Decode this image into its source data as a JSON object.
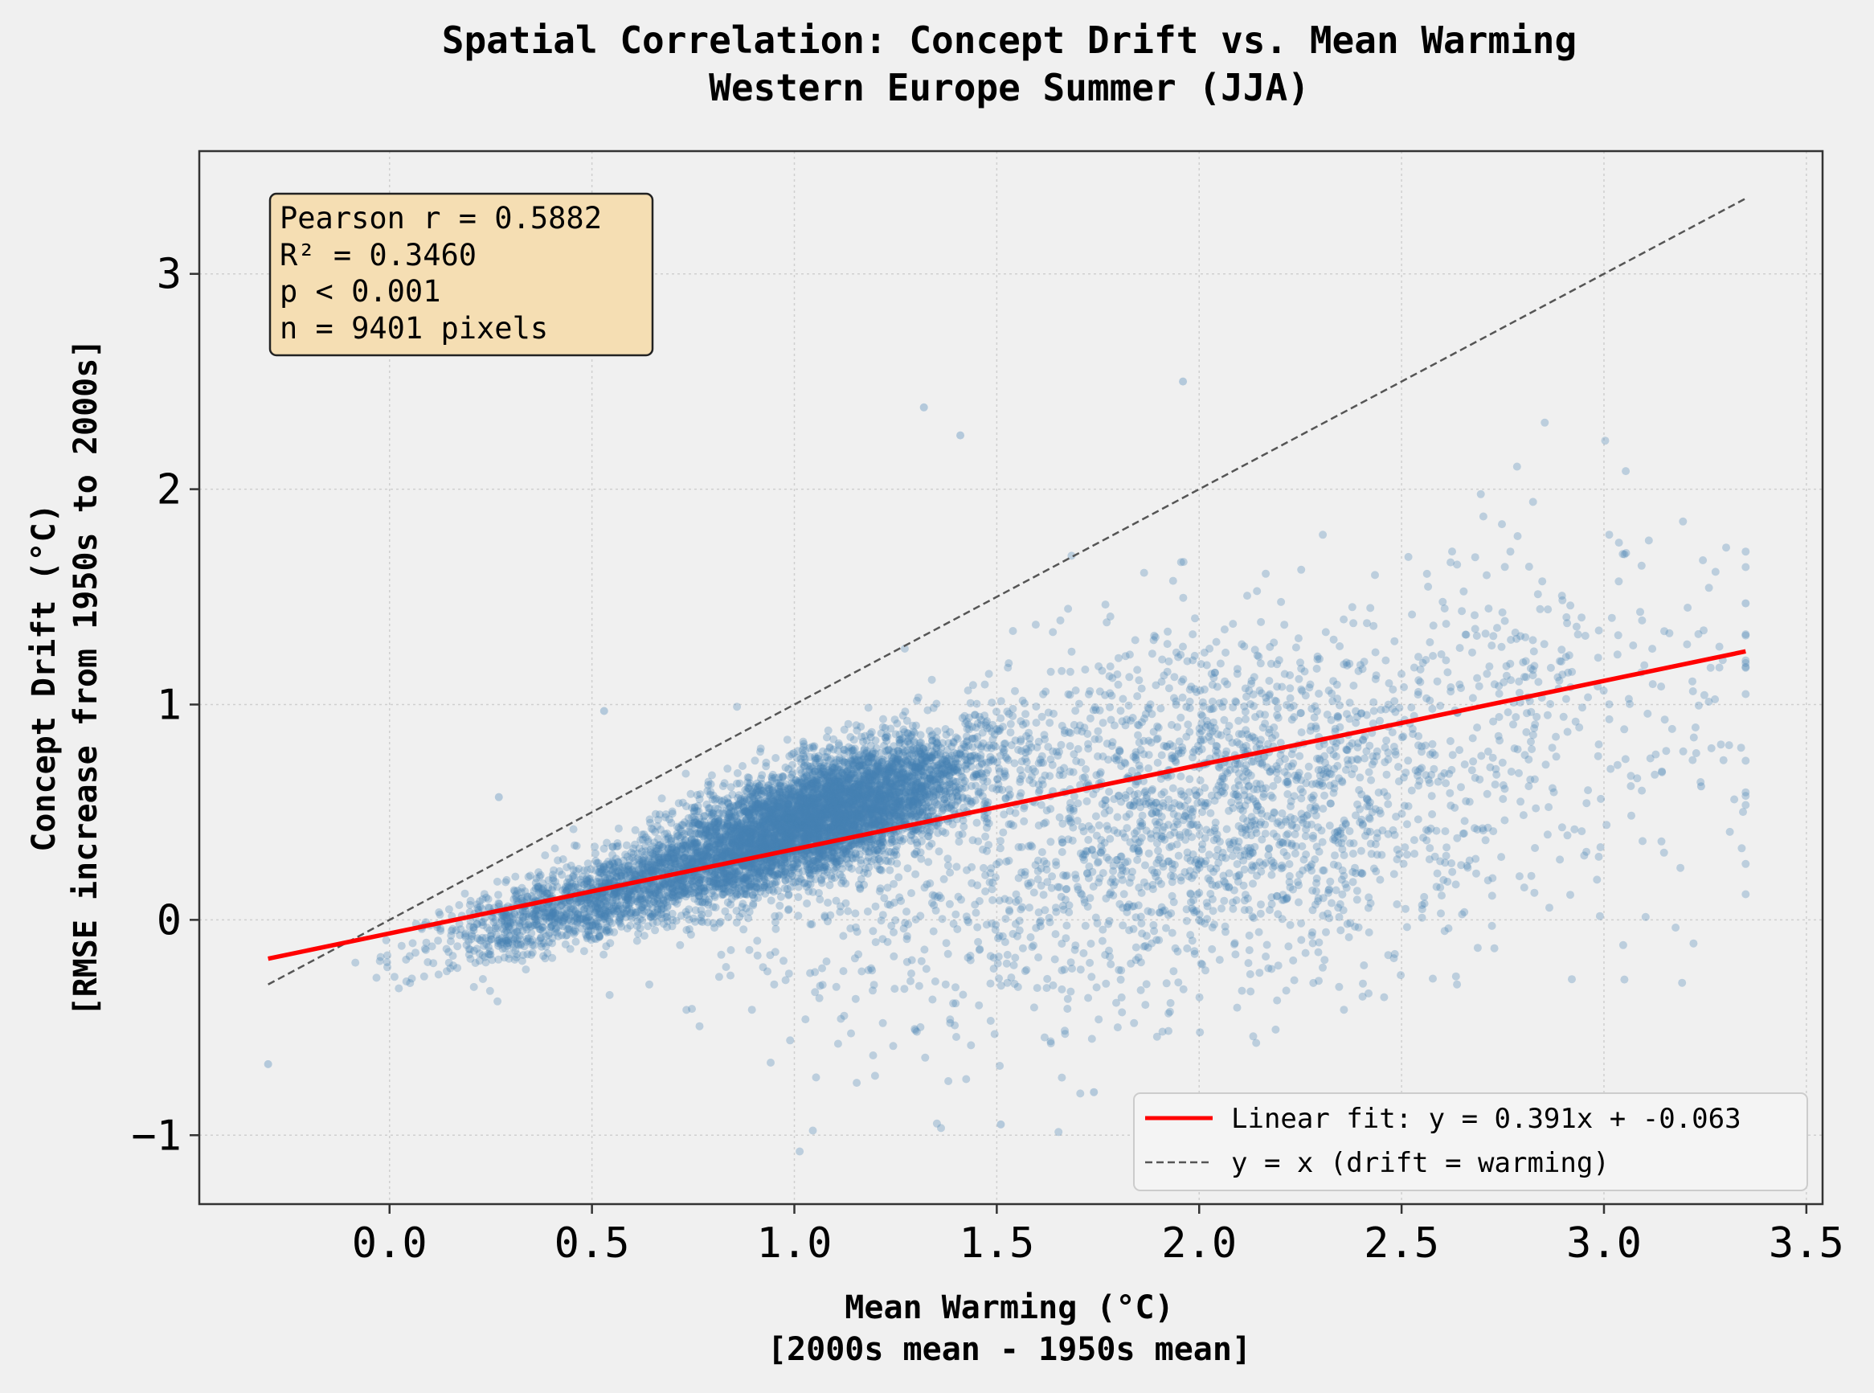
{
  "chart_data": {
    "type": "scatter",
    "title": "Spatial Correlation: Concept Drift vs. Mean Warming",
    "subtitle": "Western Europe Summer (JJA)",
    "xlabel": "Mean Warming (°C)",
    "xlabel2": "[2000s mean - 1950s mean]",
    "ylabel": "Concept Drift (°C)",
    "ylabel2": "[RMSE increase from 1950s to 2000s]",
    "xlim": [
      -0.47,
      3.54
    ],
    "ylim": [
      -1.32,
      3.57
    ],
    "xticks": [
      0.0,
      0.5,
      1.0,
      1.5,
      2.0,
      2.5,
      3.0,
      3.5
    ],
    "xtick_labels": [
      "0.0",
      "0.5",
      "1.0",
      "1.5",
      "2.0",
      "2.5",
      "3.0",
      "3.5"
    ],
    "yticks": [
      -1,
      0,
      1,
      2,
      3
    ],
    "ytick_labels": [
      "−1",
      "0",
      "1",
      "2",
      "3"
    ],
    "grid": true,
    "point_color": "#4682b4",
    "fit_color": "#ff0000",
    "identity_color": "#555555",
    "n_points": 9401,
    "fit": {
      "slope": 0.391,
      "intercept": -0.063,
      "x_range": [
        -0.3,
        3.35
      ]
    },
    "identity_line": {
      "x_range": [
        -0.3,
        3.35
      ]
    },
    "scatter_clusters": [
      {
        "x_mean": 1.05,
        "x_sd": 0.2,
        "y_slope": 0.62,
        "y_intercept": -0.18,
        "y_sd": 0.13,
        "share": 0.58
      },
      {
        "x_mean": 0.5,
        "x_sd": 0.2,
        "y_slope": 0.55,
        "y_intercept": -0.18,
        "y_sd": 0.09,
        "share": 0.15
      },
      {
        "x_mean": 2.05,
        "x_sd": 0.3,
        "y_slope": 0.0,
        "y_intercept": 0.55,
        "y_sd": 0.38,
        "share": 0.17
      },
      {
        "x_mean": 2.8,
        "x_sd": 0.3,
        "y_slope": 0.0,
        "y_intercept": 0.95,
        "y_sd": 0.45,
        "share": 0.04
      },
      {
        "x_mean": 1.4,
        "x_sd": 0.35,
        "y_slope": 0.0,
        "y_intercept": 0.1,
        "y_sd": 0.4,
        "share": 0.06
      }
    ],
    "scatter_notable_points": [
      {
        "x": 1.96,
        "y": 2.5
      },
      {
        "x": 1.32,
        "y": 2.38
      },
      {
        "x": 1.41,
        "y": 2.25
      },
      {
        "x": -0.3,
        "y": -0.67
      },
      {
        "x": 1.51,
        "y": -0.95
      },
      {
        "x": 3.24,
        "y": 0.62
      },
      {
        "x": 3.35,
        "y": 1.47
      },
      {
        "x": 0.53,
        "y": 0.97
      },
      {
        "x": 0.27,
        "y": 0.57
      },
      {
        "x": 1.74,
        "y": -0.8
      }
    ],
    "stats_box": {
      "lines": [
        "Pearson r = 0.5882",
        "R² = 0.3460",
        "p < 0.001",
        "n = 9401 pixels"
      ],
      "background": "#f5deb3"
    },
    "legend": {
      "location": "lower-right",
      "entries": [
        "Linear fit: y = 0.391x + -0.063",
        "y = x (drift = warming)"
      ]
    }
  }
}
